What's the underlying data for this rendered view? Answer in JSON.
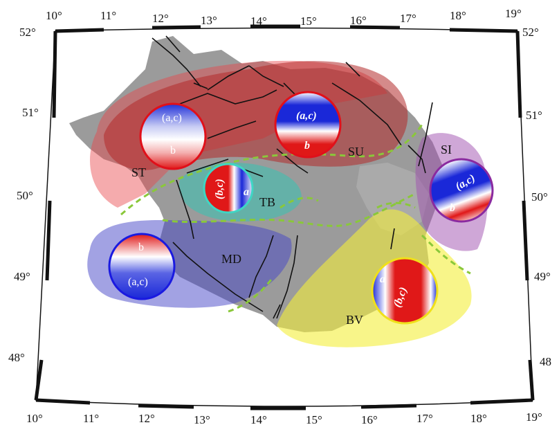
{
  "map": {
    "lon_ticks": [
      "10°",
      "11°",
      "12°",
      "13°",
      "14°",
      "15°",
      "16°",
      "17°",
      "18°",
      "19°"
    ],
    "lat_ticks": [
      "52°",
      "51°",
      "50°",
      "49°",
      "48°"
    ],
    "bottom_right_lat_label": "48"
  },
  "regions": [
    {
      "id": "ST",
      "label": "ST",
      "color": "#e8454a"
    },
    {
      "id": "SU",
      "label": "SU",
      "color": "#b22a2a"
    },
    {
      "id": "TB",
      "label": "TB",
      "color": "#3fbfb0"
    },
    {
      "id": "MD",
      "label": "MD",
      "color": "#4545c8"
    },
    {
      "id": "BV",
      "label": "BV",
      "color": "#f3ee3a"
    },
    {
      "id": "SI",
      "label": "SI",
      "color": "#a050b0"
    }
  ],
  "balls": [
    {
      "id": "ST",
      "ring": "#e0101a",
      "labels": [
        "(a,c)",
        "b"
      ]
    },
    {
      "id": "SU",
      "ring": "#e0101a",
      "labels": [
        "(a,c)",
        "b"
      ]
    },
    {
      "id": "TB",
      "ring": "#3fd6c4",
      "labels": [
        "(b,c)",
        "a"
      ]
    },
    {
      "id": "MD",
      "ring": "#1a1ae0",
      "labels": [
        "b",
        "(a,c)"
      ]
    },
    {
      "id": "BV",
      "ring": "#f0e01a",
      "labels": [
        "a",
        "(b,c)"
      ]
    },
    {
      "id": "SI",
      "ring": "#8a2aa0",
      "labels": [
        "(a,c)",
        "b"
      ]
    }
  ]
}
